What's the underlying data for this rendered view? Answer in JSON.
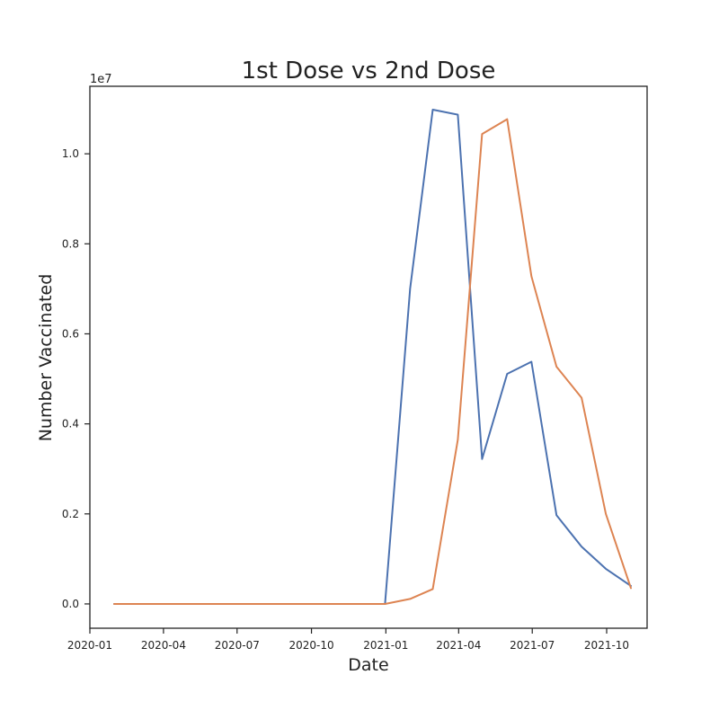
{
  "chart_data": {
    "type": "line",
    "title": "1st Dose vs 2nd Dose",
    "xlabel": "Date",
    "ylabel": "Number Vaccinated",
    "y_offset_label": "1e7",
    "xlim": [
      "2020-01-01",
      "2021-11-20"
    ],
    "ylim": [
      -540000,
      11500000
    ],
    "x_ticks": [
      {
        "value": "2020-01-01",
        "label": "2020-01"
      },
      {
        "value": "2020-04-01",
        "label": "2020-04"
      },
      {
        "value": "2020-07-01",
        "label": "2020-07"
      },
      {
        "value": "2020-10-01",
        "label": "2020-10"
      },
      {
        "value": "2021-01-01",
        "label": "2021-01"
      },
      {
        "value": "2021-04-01",
        "label": "2021-04"
      },
      {
        "value": "2021-07-01",
        "label": "2021-07"
      },
      {
        "value": "2021-10-01",
        "label": "2021-10"
      }
    ],
    "y_ticks": [
      {
        "value": 0,
        "label": "0.0"
      },
      {
        "value": 2000000,
        "label": "0.2"
      },
      {
        "value": 4000000,
        "label": "0.4"
      },
      {
        "value": 6000000,
        "label": "0.6"
      },
      {
        "value": 8000000,
        "label": "0.8"
      },
      {
        "value": 10000000,
        "label": "1.0"
      }
    ],
    "grid": false,
    "x": [
      "2020-01-31",
      "2020-02-29",
      "2020-03-31",
      "2020-04-30",
      "2020-05-31",
      "2020-06-30",
      "2020-07-31",
      "2020-08-31",
      "2020-09-30",
      "2020-10-31",
      "2020-11-30",
      "2020-12-31",
      "2021-01-31",
      "2021-02-28",
      "2021-03-31",
      "2021-04-30",
      "2021-05-31",
      "2021-06-30",
      "2021-07-31",
      "2021-08-31",
      "2021-09-30",
      "2021-10-31"
    ],
    "series": [
      {
        "color": "#4c72b0",
        "values": [
          0,
          0,
          0,
          0,
          0,
          0,
          0,
          0,
          0,
          0,
          0,
          0,
          7000000,
          10980000,
          10870000,
          3220000,
          5110000,
          5380000,
          1970000,
          1270000,
          780000,
          400000
        ]
      },
      {
        "color": "#dd8452",
        "values": [
          0,
          0,
          0,
          0,
          0,
          0,
          0,
          0,
          0,
          0,
          0,
          0,
          110000,
          330000,
          3650000,
          10440000,
          10770000,
          7280000,
          5270000,
          4580000,
          2000000,
          350000
        ]
      }
    ]
  }
}
